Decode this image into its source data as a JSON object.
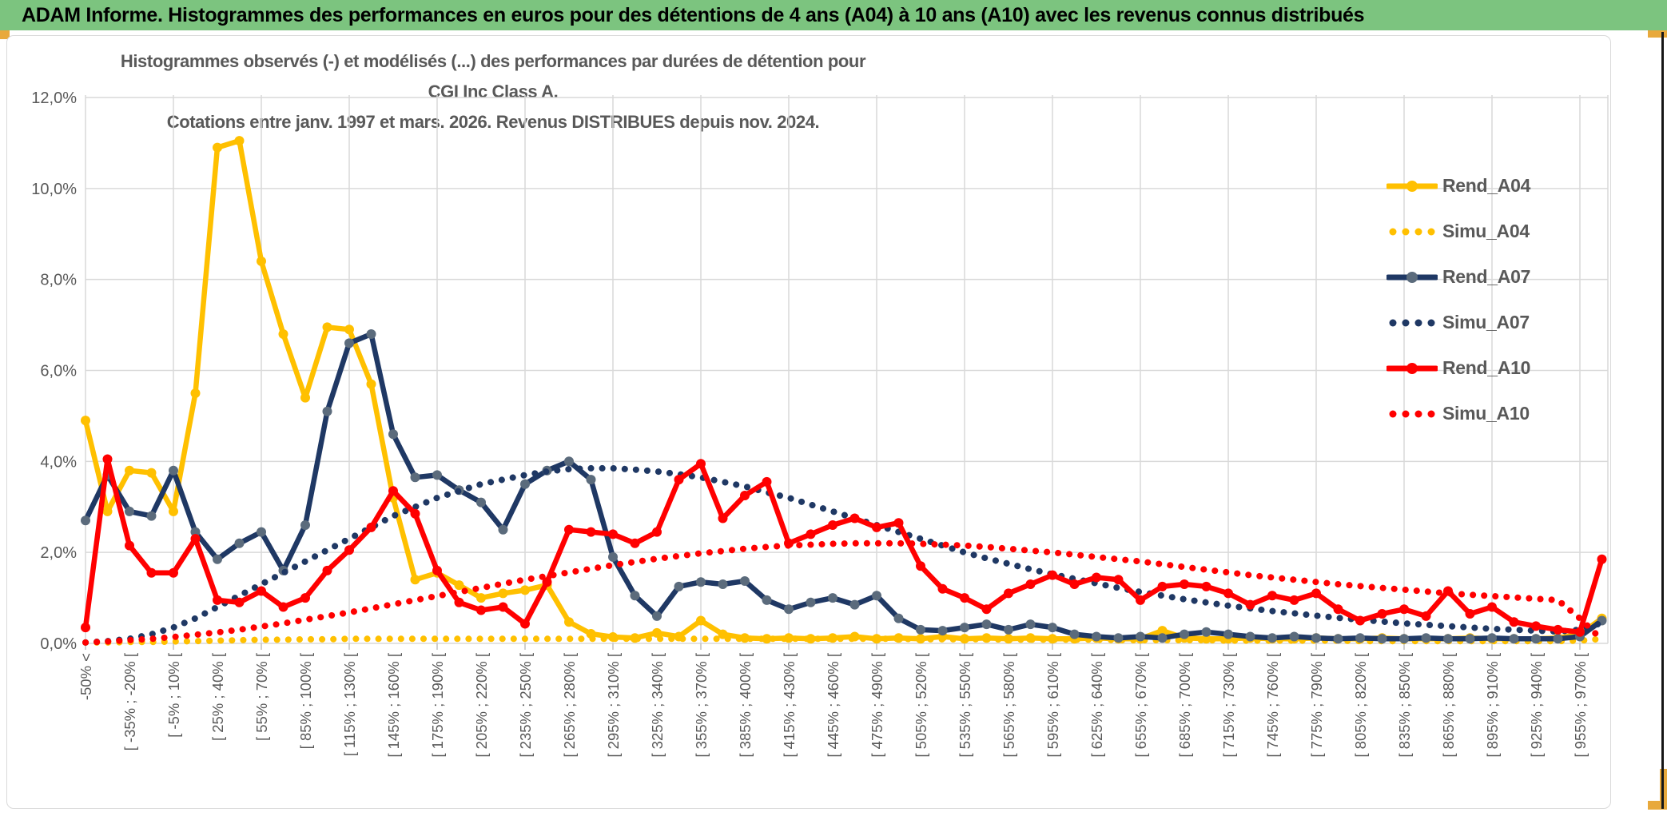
{
  "window": {
    "title": "ADAM Informe. Histogrammes des performances en euros pour des détentions de 4 ans (A04) à 10 ans (A10) avec les revenus connus distribués"
  },
  "frame": {
    "titlebar_color": "#7cc47f",
    "accent_color": "#e8a93c",
    "right_border_color": "#161616",
    "grid_color": "#d9d9d9",
    "text_color": "#595959"
  },
  "chart_data": {
    "type": "line",
    "title": "Histogrammes observés (-) et modélisés (...) des performances par durées de détention pour CGI Inc Class A.",
    "subtitle": "Cotations entre janv. 1997 et mars. 2026. Revenus DISTRIBUES depuis nov. 2024.",
    "xlabel": "",
    "ylabel": "",
    "ylim": [
      0,
      12
    ],
    "y_tick_labels": [
      "12,0%",
      "10,0%",
      "8,0%",
      "6,0%",
      "4,0%",
      "2,0%",
      "0,0%"
    ],
    "grid": true,
    "legend_position": "right",
    "points_per_label": 2,
    "x_labels": [
      "-50% <",
      "[ -35% ; -20% [",
      "[ -5% ; 10% [",
      "[ 25% ; 40% [",
      "[ 55% ; 70% [",
      "[ 85% ; 100% [",
      "[ 115% ; 130% [",
      "[ 145% ; 160% [",
      "[ 175% ; 190% [",
      "[ 205% ; 220% [",
      "[ 235% ; 250% [",
      "[ 265% ; 280% [",
      "[ 295% ; 310% [",
      "[ 325% ; 340% [",
      "[ 355% ; 370% [",
      "[ 385% ; 400% [",
      "[ 415% ; 430% [",
      "[ 445% ; 460% [",
      "[ 475% ; 490% [",
      "[ 505% ; 520% [",
      "[ 535% ; 550% [",
      "[ 565% ; 580% [",
      "[ 595% ; 610% [",
      "[ 625% ; 640% [",
      "[ 655% ; 670% [",
      "[ 685% ; 700% [",
      "[ 715% ; 730% [",
      "[ 745% ; 760% [",
      "[ 775% ; 790% [",
      "[ 805% ; 820% [",
      "[ 835% ; 850% [",
      "[ 865% ; 880% [",
      "[ 895% ; 910% [",
      "[ 925% ; 940% [",
      "[ 955% ; 970% ["
    ],
    "series": [
      {
        "name": "Rend_A04",
        "style": "solid",
        "color": "#FFC000",
        "marker_color": "#FFC000",
        "values": [
          4.9,
          2.9,
          3.8,
          3.75,
          2.9,
          5.5,
          10.9,
          11.05,
          8.4,
          6.8,
          5.4,
          6.95,
          6.9,
          5.7,
          3.2,
          1.4,
          1.55,
          1.28,
          1.0,
          1.1,
          1.17,
          1.28,
          0.47,
          0.21,
          0.14,
          0.12,
          0.23,
          0.15,
          0.5,
          0.2,
          0.12,
          0.1,
          0.12,
          0.1,
          0.12,
          0.15,
          0.1,
          0.12,
          0.1,
          0.15,
          0.1,
          0.12,
          0.1,
          0.12,
          0.1,
          0.1,
          0.12,
          0.1,
          0.1,
          0.28,
          0.12,
          0.1,
          0.1,
          0.12,
          0.1,
          0.1,
          0.12,
          0.1,
          0.1,
          0.12,
          0.1,
          0.1,
          0.1,
          0.12,
          0.1,
          0.1,
          0.1,
          0.12,
          0.2,
          0.55
        ]
      },
      {
        "name": "Simu_A04",
        "style": "dotted",
        "color": "#FFC000",
        "marker_color": "#FFC000",
        "values": [
          0.02,
          0.02,
          0.03,
          0.03,
          0.04,
          0.05,
          0.06,
          0.07,
          0.08,
          0.08,
          0.09,
          0.09,
          0.1,
          0.1,
          0.1,
          0.1,
          0.1,
          0.1,
          0.1,
          0.1,
          0.1,
          0.1,
          0.1,
          0.1,
          0.1,
          0.1,
          0.1,
          0.1,
          0.1,
          0.1,
          0.1,
          0.1,
          0.1,
          0.1,
          0.1,
          0.1,
          0.1,
          0.1,
          0.09,
          0.09,
          0.09,
          0.09,
          0.08,
          0.08,
          0.08,
          0.08,
          0.08,
          0.07,
          0.07,
          0.07,
          0.07,
          0.07,
          0.06,
          0.06,
          0.06,
          0.06,
          0.06,
          0.06,
          0.05,
          0.05,
          0.05,
          0.05,
          0.05,
          0.05,
          0.05,
          0.05,
          0.05,
          0.05,
          0.06,
          0.1
        ]
      },
      {
        "name": "Rend_A07",
        "style": "solid",
        "color": "#1F3864",
        "marker_color": "#5B6B7C",
        "values": [
          2.7,
          3.7,
          2.9,
          2.8,
          3.8,
          2.45,
          1.85,
          2.2,
          2.45,
          1.6,
          2.6,
          5.1,
          6.6,
          6.8,
          4.6,
          3.65,
          3.7,
          3.37,
          3.1,
          2.5,
          3.5,
          3.8,
          4.0,
          3.6,
          1.9,
          1.05,
          0.6,
          1.25,
          1.35,
          1.3,
          1.37,
          0.95,
          0.75,
          0.9,
          1.0,
          0.85,
          1.05,
          0.55,
          0.3,
          0.28,
          0.35,
          0.42,
          0.3,
          0.42,
          0.35,
          0.2,
          0.15,
          0.12,
          0.15,
          0.12,
          0.2,
          0.25,
          0.2,
          0.15,
          0.12,
          0.15,
          0.12,
          0.1,
          0.12,
          0.1,
          0.1,
          0.12,
          0.1,
          0.1,
          0.12,
          0.1,
          0.1,
          0.1,
          0.15,
          0.5
        ]
      },
      {
        "name": "Simu_A07",
        "style": "dotted",
        "color": "#1F3864",
        "marker_color": "#1F3864",
        "values": [
          0.02,
          0.05,
          0.1,
          0.2,
          0.35,
          0.55,
          0.8,
          1.05,
          1.3,
          1.55,
          1.8,
          2.05,
          2.3,
          2.55,
          2.8,
          3.0,
          3.2,
          3.35,
          3.5,
          3.6,
          3.7,
          3.78,
          3.83,
          3.85,
          3.85,
          3.82,
          3.78,
          3.72,
          3.65,
          3.55,
          3.45,
          3.32,
          3.2,
          3.05,
          2.9,
          2.75,
          2.6,
          2.45,
          2.3,
          2.15,
          2.0,
          1.87,
          1.75,
          1.63,
          1.52,
          1.42,
          1.32,
          1.22,
          1.13,
          1.05,
          0.97,
          0.9,
          0.83,
          0.77,
          0.71,
          0.66,
          0.61,
          0.56,
          0.52,
          0.48,
          0.44,
          0.41,
          0.38,
          0.35,
          0.32,
          0.3,
          0.28,
          0.26,
          0.3,
          0.45
        ]
      },
      {
        "name": "Rend_A10",
        "style": "solid",
        "color": "#FF0000",
        "marker_color": "#FF0000",
        "values": [
          0.35,
          4.05,
          2.15,
          1.55,
          1.55,
          2.3,
          0.95,
          0.9,
          1.15,
          0.8,
          1.0,
          1.6,
          2.05,
          2.55,
          3.35,
          2.85,
          1.6,
          0.9,
          0.73,
          0.8,
          0.43,
          1.35,
          2.5,
          2.45,
          2.4,
          2.2,
          2.45,
          3.6,
          3.95,
          2.75,
          3.25,
          3.55,
          2.2,
          2.4,
          2.6,
          2.75,
          2.55,
          2.65,
          1.7,
          1.2,
          1.0,
          0.75,
          1.1,
          1.3,
          1.5,
          1.3,
          1.45,
          1.4,
          0.95,
          1.25,
          1.3,
          1.25,
          1.1,
          0.85,
          1.05,
          0.95,
          1.1,
          0.75,
          0.5,
          0.65,
          0.75,
          0.6,
          1.15,
          0.65,
          0.8,
          0.47,
          0.38,
          0.3,
          0.25,
          1.85
        ]
      },
      {
        "name": "Simu_A10",
        "style": "dotted",
        "color": "#FF0000",
        "marker_color": "#FF0000",
        "values": [
          0.02,
          0.04,
          0.07,
          0.1,
          0.14,
          0.19,
          0.24,
          0.3,
          0.37,
          0.44,
          0.52,
          0.6,
          0.68,
          0.77,
          0.86,
          0.95,
          1.04,
          1.13,
          1.22,
          1.31,
          1.4,
          1.48,
          1.56,
          1.64,
          1.72,
          1.79,
          1.86,
          1.92,
          1.98,
          2.03,
          2.08,
          2.12,
          2.15,
          2.17,
          2.19,
          2.2,
          2.2,
          2.2,
          2.19,
          2.17,
          2.15,
          2.12,
          2.08,
          2.04,
          2.0,
          1.95,
          1.9,
          1.85,
          1.8,
          1.74,
          1.68,
          1.62,
          1.56,
          1.5,
          1.45,
          1.4,
          1.35,
          1.3,
          1.26,
          1.22,
          1.18,
          1.14,
          1.1,
          1.07,
          1.04,
          1.01,
          0.98,
          0.95,
          0.55,
          0.08
        ]
      }
    ]
  }
}
